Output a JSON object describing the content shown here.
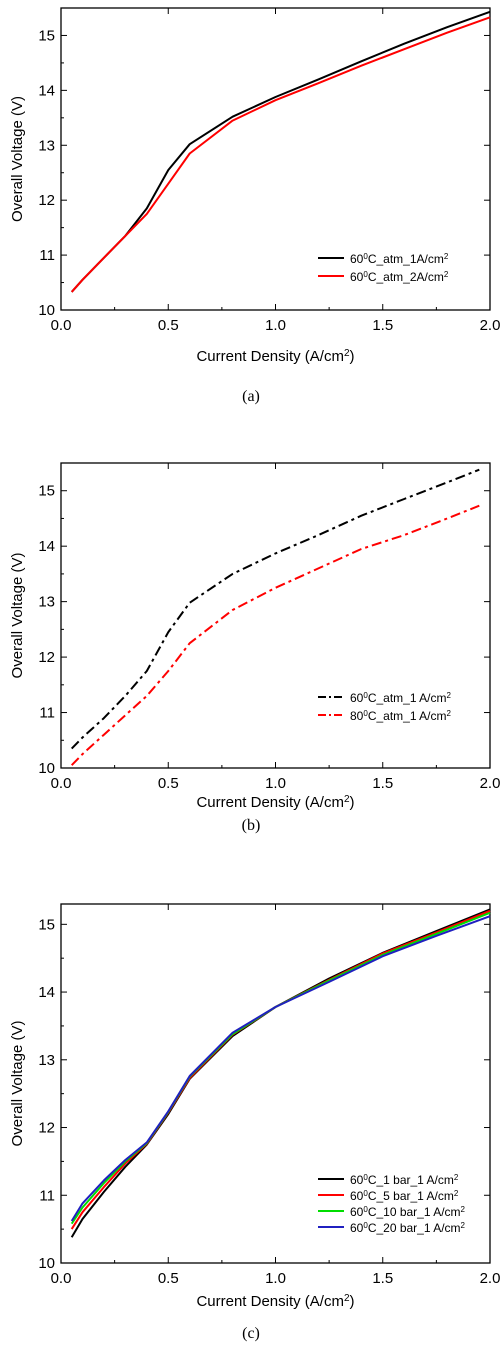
{
  "chart_data": [
    {
      "type": "line",
      "xlabel": "Current Density (A/cm",
      "xlabel_sup": "2",
      "xlabel_end": ")",
      "ylabel": "Overall Voltage (V)",
      "xlim": [
        0.0,
        2.0
      ],
      "ylim": [
        10,
        15.5
      ],
      "xticks": [
        "0.0",
        "0.5",
        "1.0",
        "1.5",
        "2.0"
      ],
      "xtick_values": [
        0.0,
        0.5,
        1.0,
        1.5,
        2.0
      ],
      "yticks": [
        "10",
        "11",
        "12",
        "13",
        "14",
        "15"
      ],
      "ytick_values": [
        10,
        11,
        12,
        13,
        14,
        15
      ],
      "legend_position": "bottom-right",
      "caption": "(a)",
      "series": [
        {
          "name_parts": [
            "60",
            "0",
            "C_atm_1A/cm",
            "2",
            ""
          ],
          "color": "#000000",
          "dash": "solid",
          "x": [
            0.05,
            0.1,
            0.2,
            0.3,
            0.4,
            0.5,
            0.6,
            0.8,
            1.0,
            1.2,
            1.4,
            1.6,
            1.8,
            2.0
          ],
          "y": [
            10.33,
            10.55,
            10.95,
            11.35,
            11.85,
            12.55,
            13.02,
            13.52,
            13.88,
            14.2,
            14.53,
            14.85,
            15.15,
            15.43
          ]
        },
        {
          "name_parts": [
            "60",
            "0",
            "C_atm_2A/cm",
            "2",
            ""
          ],
          "color": "#ff0000",
          "dash": "solid",
          "x": [
            0.05,
            0.1,
            0.2,
            0.3,
            0.4,
            0.5,
            0.6,
            0.8,
            1.0,
            1.2,
            1.4,
            1.6,
            1.8,
            2.0
          ],
          "y": [
            10.33,
            10.55,
            10.95,
            11.35,
            11.75,
            12.3,
            12.85,
            13.45,
            13.82,
            14.13,
            14.45,
            14.75,
            15.05,
            15.33
          ]
        }
      ]
    },
    {
      "type": "line",
      "xlabel": "Current Density (A/cm",
      "xlabel_sup": "2",
      "xlabel_end": ")",
      "ylabel": "Overall Voltage (V)",
      "xlim": [
        0.0,
        2.0
      ],
      "ylim": [
        10,
        15.5
      ],
      "xticks": [
        "0.0",
        "0.5",
        "1.0",
        "1.5",
        "2.0"
      ],
      "xtick_values": [
        0.0,
        0.5,
        1.0,
        1.5,
        2.0
      ],
      "yticks": [
        "10",
        "11",
        "12",
        "13",
        "14",
        "15"
      ],
      "ytick_values": [
        10,
        11,
        12,
        13,
        14,
        15
      ],
      "legend_position": "bottom-right",
      "caption": "(b)",
      "series": [
        {
          "name_parts": [
            "60",
            "0",
            "C_atm_1 A/cm",
            "2",
            ""
          ],
          "color": "#000000",
          "dash": "dashdot",
          "x": [
            0.05,
            0.1,
            0.2,
            0.3,
            0.4,
            0.5,
            0.6,
            0.8,
            1.0,
            1.2,
            1.4,
            1.6,
            1.8,
            1.95
          ],
          "y": [
            10.35,
            10.55,
            10.9,
            11.3,
            11.75,
            12.45,
            12.98,
            13.5,
            13.87,
            14.2,
            14.55,
            14.85,
            15.15,
            15.38
          ]
        },
        {
          "name_parts": [
            "80",
            "0",
            "C_atm_1 A/cm",
            "2",
            ""
          ],
          "color": "#ff0000",
          "dash": "dashdot",
          "x": [
            0.05,
            0.1,
            0.2,
            0.3,
            0.4,
            0.5,
            0.6,
            0.8,
            1.0,
            1.2,
            1.4,
            1.6,
            1.8,
            1.95
          ],
          "y": [
            10.05,
            10.25,
            10.6,
            10.95,
            11.3,
            11.75,
            12.25,
            12.85,
            13.25,
            13.6,
            13.95,
            14.2,
            14.5,
            14.73
          ]
        }
      ]
    },
    {
      "type": "line",
      "xlabel": "Current Density (A/cm",
      "xlabel_sup": "2",
      "xlabel_end": ")",
      "ylabel": "Overall Voltage (V)",
      "xlim": [
        0.0,
        2.0
      ],
      "ylim": [
        10,
        15.3
      ],
      "xticks": [
        "0.0",
        "0.5",
        "1.0",
        "1.5",
        "2.0"
      ],
      "xtick_values": [
        0.0,
        0.5,
        1.0,
        1.5,
        2.0
      ],
      "yticks": [
        "10",
        "11",
        "12",
        "13",
        "14",
        "15"
      ],
      "ytick_values": [
        10,
        11,
        12,
        13,
        14,
        15
      ],
      "legend_position": "bottom-right",
      "caption": "(c)",
      "series": [
        {
          "name_parts": [
            "60",
            "0",
            "C_1 bar_1 A/cm",
            "2",
            ""
          ],
          "color": "#000000",
          "dash": "solid",
          "x": [
            0.05,
            0.1,
            0.2,
            0.3,
            0.4,
            0.5,
            0.6,
            0.8,
            1.0,
            1.25,
            1.5,
            1.75,
            2.0
          ],
          "y": [
            10.38,
            10.65,
            11.05,
            11.42,
            11.75,
            12.2,
            12.72,
            13.35,
            13.78,
            14.2,
            14.58,
            14.9,
            15.22
          ]
        },
        {
          "name_parts": [
            "60",
            "0",
            "C_5 bar_1 A/cm",
            "2",
            ""
          ],
          "color": "#ff0000",
          "dash": "solid",
          "x": [
            0.05,
            0.1,
            0.2,
            0.3,
            0.4,
            0.5,
            0.6,
            0.8,
            1.0,
            1.25,
            1.5,
            1.75,
            2.0
          ],
          "y": [
            10.5,
            10.75,
            11.12,
            11.47,
            11.76,
            12.22,
            12.73,
            13.37,
            13.78,
            14.18,
            14.57,
            14.88,
            15.2
          ]
        },
        {
          "name_parts": [
            "60",
            "0",
            "C_10 bar_1 A/cm",
            "2",
            ""
          ],
          "color": "#00dd00",
          "dash": "solid",
          "x": [
            0.05,
            0.1,
            0.2,
            0.3,
            0.4,
            0.5,
            0.6,
            0.8,
            1.0,
            1.25,
            1.5,
            1.75,
            2.0
          ],
          "y": [
            10.58,
            10.82,
            11.18,
            11.5,
            11.77,
            12.23,
            12.75,
            13.38,
            13.78,
            14.17,
            14.55,
            14.86,
            15.17
          ]
        },
        {
          "name_parts": [
            "60",
            "0",
            "C_20 bar_1 A/cm",
            "2",
            ""
          ],
          "color": "#2020c0",
          "dash": "solid",
          "x": [
            0.05,
            0.1,
            0.2,
            0.3,
            0.4,
            0.5,
            0.6,
            0.8,
            1.0,
            1.25,
            1.5,
            1.75,
            2.0
          ],
          "y": [
            10.62,
            10.88,
            11.22,
            11.52,
            11.78,
            12.24,
            12.76,
            13.4,
            13.78,
            14.15,
            14.53,
            14.83,
            15.12
          ]
        }
      ]
    }
  ]
}
